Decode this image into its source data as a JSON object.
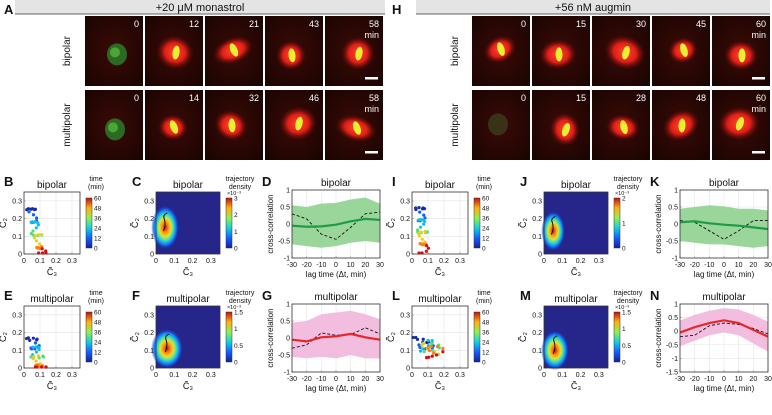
{
  "figure": {
    "panel_letters": [
      "A",
      "B",
      "C",
      "D",
      "E",
      "F",
      "G",
      "H",
      "I",
      "J",
      "K",
      "L",
      "M",
      "N"
    ],
    "headers": {
      "left": "+20 μM monastrol",
      "right": "+56 nM augmin"
    },
    "row_labels": [
      "bipolar",
      "multipolar"
    ],
    "monastrol": {
      "bipolar_times": [
        "0",
        "12",
        "21",
        "43",
        "58"
      ],
      "multipolar_times": [
        "0",
        "14",
        "32",
        "46",
        "58"
      ]
    },
    "augmin": {
      "bipolar_times": [
        "0",
        "15",
        "30",
        "45",
        "60"
      ],
      "multipolar_times": [
        "0",
        "15",
        "28",
        "48",
        "60"
      ]
    },
    "time_unit": "min",
    "labels": {
      "bipolar": "bipolar",
      "multipolar": "multipolar",
      "c2": "C̃₂",
      "c3": "C̃₃",
      "time": "time",
      "min": "(min)",
      "traj1": "trajectory",
      "traj2": "density",
      "crosscorr": "cross-correlation",
      "lag": "lag time (Δt, min)",
      "exp": "×10⁻³"
    },
    "colors": {
      "green": "#1e9a48",
      "green_band": "#8fd18f",
      "red": "#e8262a",
      "pink_band": "#f2b6dc"
    }
  },
  "chart_data": [
    {
      "panel": "B",
      "type": "scatter",
      "title": "bipolar",
      "xlabel": "C̃₃",
      "ylabel": "C̃₂",
      "xlim": [
        0,
        0.35
      ],
      "ylim": [
        0,
        0.35
      ],
      "xticks": [
        "0",
        "0.1",
        "0.2",
        "0.3"
      ],
      "yticks": [
        "0",
        "0.1",
        "0.2",
        "0.3"
      ],
      "colorbar": {
        "label": "time (min)",
        "ticks": [
          "0",
          "12",
          "24",
          "36",
          "48",
          "60"
        ]
      }
    },
    {
      "panel": "C",
      "type": "heatmap",
      "title": "bipolar",
      "xlabel": "C̃₃",
      "ylabel": "C̃₂",
      "xlim": [
        0,
        0.35
      ],
      "ylim": [
        0,
        0.35
      ],
      "xticks": [
        "0",
        "0.1",
        "0.2",
        "0.3"
      ],
      "yticks": [
        "0",
        "0.1",
        "0.2",
        "0.3"
      ],
      "colorbar": {
        "label": "trajectory density",
        "ticks": [
          "0",
          "1",
          "2",
          "3"
        ],
        "scale": "×10⁻³"
      }
    },
    {
      "panel": "D",
      "type": "line",
      "title": "bipolar",
      "xlabel": "lag time (Δt, min)",
      "ylabel": "cross-correlation",
      "xlim": [
        -30,
        30
      ],
      "ylim": [
        -1,
        1
      ],
      "xticks": [
        "-30",
        "-20",
        "-10",
        "0",
        "10",
        "20",
        "30"
      ],
      "yticks": [
        "-1",
        "-0.5",
        "0",
        "0.5",
        "1"
      ],
      "x": [
        -30,
        -20,
        -10,
        0,
        10,
        20,
        30
      ],
      "series": [
        {
          "values": [
            -0.05,
            -0.08,
            -0.07,
            -0.02,
            0.08,
            0.15,
            0.12
          ]
        },
        {
          "values": [
            0.3,
            0.15,
            -0.3,
            -0.45,
            -0.1,
            0.3,
            0.35
          ]
        }
      ],
      "band": {
        "upper": [
          0.55,
          0.5,
          0.6,
          0.62,
          0.72,
          0.78,
          0.6
        ],
        "lower": [
          -0.6,
          -0.65,
          -0.7,
          -0.65,
          -0.55,
          -0.5,
          -0.55
        ]
      }
    },
    {
      "panel": "E",
      "type": "scatter",
      "title": "multipolar",
      "xlabel": "C̃₃",
      "ylabel": "C̃₂",
      "xlim": [
        0,
        0.35
      ],
      "ylim": [
        0,
        0.35
      ],
      "xticks": [
        "0",
        "0.1",
        "0.2",
        "0.3"
      ],
      "yticks": [
        "0",
        "0.1",
        "0.2",
        "0.3"
      ],
      "colorbar": {
        "label": "time (min)",
        "ticks": [
          "0",
          "12",
          "24",
          "36",
          "48",
          "60"
        ]
      }
    },
    {
      "panel": "F",
      "type": "heatmap",
      "title": "multipolar",
      "xlabel": "C̃₃",
      "ylabel": "C̃₂",
      "xlim": [
        0,
        0.35
      ],
      "ylim": [
        0,
        0.35
      ],
      "xticks": [
        "0",
        "0.1",
        "0.2",
        "0.3"
      ],
      "yticks": [
        "0",
        "0.1",
        "0.2",
        "0.3"
      ],
      "colorbar": {
        "label": "trajectory density",
        "ticks": [
          "0",
          "0.5",
          "1",
          "1.5"
        ],
        "scale": "×10⁻³"
      }
    },
    {
      "panel": "G",
      "type": "line",
      "title": "multipolar",
      "xlabel": "lag time (Δt, min)",
      "ylabel": "cross-correlation",
      "xlim": [
        -30,
        30
      ],
      "ylim": [
        -1,
        1
      ],
      "xticks": [
        "-30",
        "-20",
        "-10",
        "0",
        "10",
        "20",
        "30"
      ],
      "yticks": [
        "-1",
        "-0.5",
        "0",
        "0.5",
        "1"
      ],
      "x": [
        -30,
        -20,
        -10,
        0,
        10,
        20,
        30
      ],
      "series": [
        {
          "values": [
            -0.05,
            -0.1,
            0.02,
            0.05,
            0.12,
            0.02,
            -0.05
          ]
        },
        {
          "values": [
            -0.3,
            -0.2,
            0.15,
            0.08,
            0.1,
            0.3,
            0.12
          ]
        }
      ],
      "band": {
        "upper": [
          0.45,
          0.5,
          0.7,
          0.75,
          0.8,
          0.7,
          0.55
        ],
        "lower": [
          -0.55,
          -0.6,
          -0.55,
          -0.6,
          -0.5,
          -0.6,
          -0.6
        ]
      }
    },
    {
      "panel": "I",
      "type": "scatter",
      "title": "bipolar",
      "xlabel": "C̃₃",
      "ylabel": "C̃₂",
      "xlim": [
        0,
        0.35
      ],
      "ylim": [
        0,
        0.35
      ],
      "xticks": [
        "0",
        "0.1",
        "0.2",
        "0.3"
      ],
      "yticks": [
        "0",
        "0.1",
        "0.2",
        "0.3"
      ],
      "colorbar": {
        "label": "time (min)",
        "ticks": [
          "0",
          "12",
          "24",
          "36",
          "48",
          "60"
        ]
      }
    },
    {
      "panel": "J",
      "type": "heatmap",
      "title": "bipolar",
      "xlabel": "C̃₃",
      "ylabel": "C̃₂",
      "xlim": [
        0,
        0.35
      ],
      "ylim": [
        0,
        0.35
      ],
      "xticks": [
        "0",
        "0.1",
        "0.2",
        "0.3"
      ],
      "yticks": [
        "0",
        "0.1",
        "0.2",
        "0.3"
      ],
      "colorbar": {
        "label": "trajectory density",
        "ticks": [
          "0",
          "1",
          "2"
        ],
        "scale": "×10⁻³"
      }
    },
    {
      "panel": "K",
      "type": "line",
      "title": "bipolar",
      "xlabel": "lag time (Δt, min)",
      "ylabel": "cross-correlation",
      "xlim": [
        -30,
        30
      ],
      "ylim": [
        -1,
        1
      ],
      "xticks": [
        "-30",
        "-20",
        "-10",
        "0",
        "10",
        "20",
        "30"
      ],
      "yticks": [
        "-1",
        "-0.5",
        "0",
        "0.5",
        "1"
      ],
      "x": [
        -30,
        -20,
        -10,
        0,
        10,
        20,
        30
      ],
      "series": [
        {
          "values": [
            0.05,
            0.08,
            0.02,
            -0.02,
            -0.05,
            -0.1,
            -0.15
          ]
        },
        {
          "values": [
            0.1,
            0.05,
            -0.2,
            -0.45,
            -0.2,
            0.1,
            0.1
          ]
        }
      ],
      "band": {
        "upper": [
          0.45,
          0.5,
          0.55,
          0.52,
          0.45,
          0.45,
          0.4
        ],
        "lower": [
          -0.5,
          -0.55,
          -0.6,
          -0.6,
          -0.65,
          -0.7,
          -0.65
        ]
      }
    },
    {
      "panel": "L",
      "type": "scatter",
      "title": "multipolar",
      "xlabel": "C̃₃",
      "ylabel": "C̃₂",
      "xlim": [
        0,
        0.35
      ],
      "ylim": [
        0,
        0.35
      ],
      "xticks": [
        "0",
        "0.1",
        "0.2",
        "0.3"
      ],
      "yticks": [
        "0",
        "0.1",
        "0.2",
        "0.3"
      ],
      "colorbar": {
        "label": "time (min)",
        "ticks": [
          "0",
          "12",
          "24",
          "36",
          "48",
          "60"
        ]
      }
    },
    {
      "panel": "M",
      "type": "heatmap",
      "title": "multipolar",
      "xlabel": "C̃₃",
      "ylabel": "C̃₂",
      "xlim": [
        0,
        0.35
      ],
      "ylim": [
        0,
        0.35
      ],
      "xticks": [
        "0",
        "0.1",
        "0.2",
        "0.3"
      ],
      "yticks": [
        "0",
        "0.1",
        "0.2",
        "0.3"
      ],
      "colorbar": {
        "label": "trajectory density",
        "ticks": [
          "0",
          "0.5",
          "1",
          "1.5"
        ],
        "scale": "×10⁻³"
      }
    },
    {
      "panel": "N",
      "type": "line",
      "title": "multipolar",
      "xlabel": "lag time (Δt, min)",
      "ylabel": "cross-correlation",
      "xlim": [
        -30,
        30
      ],
      "ylim": [
        -1.5,
        1
      ],
      "xticks": [
        "-30",
        "-20",
        "-10",
        "0",
        "10",
        "20",
        "30"
      ],
      "yticks": [
        "-1.5",
        "-1",
        "-0.5",
        "0",
        "0.5",
        "1"
      ],
      "x": [
        -30,
        -20,
        -10,
        0,
        10,
        20,
        30
      ],
      "series": [
        {
          "values": [
            -0.05,
            0.15,
            0.3,
            0.4,
            0.3,
            0.05,
            -0.2
          ]
        },
        {
          "values": [
            -0.2,
            -0.15,
            0.2,
            0.3,
            0.25,
            0.1,
            -0.1
          ]
        }
      ],
      "band": {
        "upper": [
          0.4,
          0.6,
          0.75,
          0.85,
          0.8,
          0.6,
          0.35
        ],
        "lower": [
          -0.55,
          -0.35,
          -0.15,
          -0.05,
          -0.15,
          -0.45,
          -0.75
        ]
      }
    }
  ]
}
